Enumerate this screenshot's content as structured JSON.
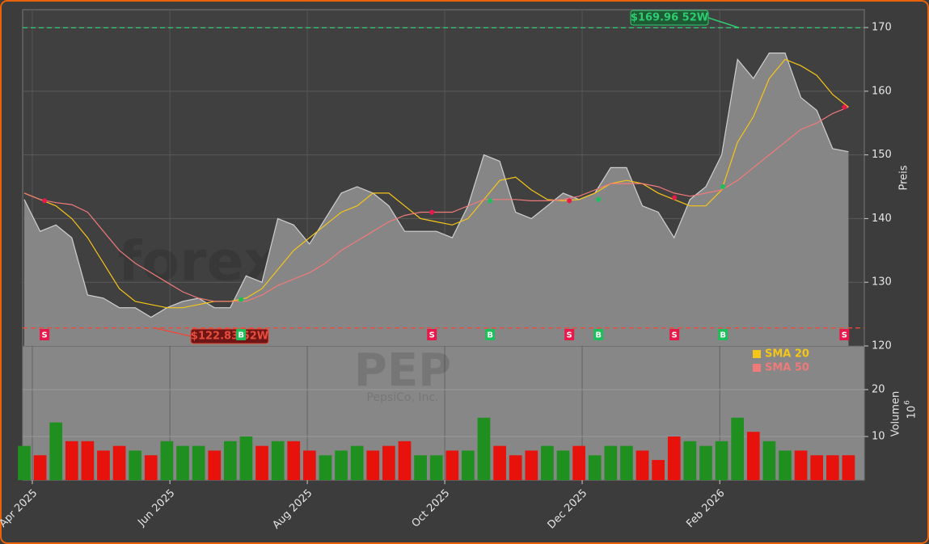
{
  "chart_data": {
    "type": "stock",
    "symbol": "PEP",
    "company": "PepsiCo, Inc.",
    "watermark": "forexsignale.trade",
    "ylabel": "Preis",
    "xlim": [
      -0.1,
      53.0
    ],
    "xticks": [
      {
        "value": 0.51,
        "label": "Apr 2025"
      },
      {
        "value": 9.19,
        "label": "Jun 2025"
      },
      {
        "value": 17.86,
        "label": "Aug 2025"
      },
      {
        "value": 26.53,
        "label": "Oct 2025"
      },
      {
        "value": 35.2,
        "label": "Dec 2025"
      },
      {
        "value": 43.88,
        "label": "Feb 2026"
      }
    ],
    "ylim": [
      120,
      172.8
    ],
    "yticks": [
      120,
      130,
      140,
      150,
      160,
      170
    ],
    "grid": true,
    "close": {
      "color": "#8a8a8a",
      "line_color": "#d0d0d0",
      "values": [
        143,
        138,
        139,
        137,
        128,
        127.5,
        126,
        126,
        124.5,
        126,
        127,
        127.5,
        126,
        126,
        131,
        130,
        140,
        139,
        136,
        140,
        144,
        145,
        144,
        142,
        138,
        138,
        138,
        137,
        142,
        150,
        149,
        141,
        140,
        142,
        144,
        143,
        144,
        148,
        148,
        142,
        141,
        137,
        143,
        145,
        150,
        165,
        162,
        166,
        166,
        159,
        157,
        151,
        150.5
      ]
    },
    "series": [
      {
        "name": "SMA 20",
        "color": "#f5c518",
        "values": [
          144,
          143,
          142,
          140,
          137,
          133,
          129,
          127,
          126.5,
          126,
          126,
          126.5,
          127,
          127,
          127.5,
          129,
          132,
          135,
          137,
          139,
          141,
          142,
          144,
          144,
          142,
          140,
          139.5,
          139,
          140,
          143,
          146,
          146.5,
          144.5,
          143,
          142.8,
          143,
          144,
          145.5,
          146,
          145.5,
          144,
          143,
          142,
          142,
          144.5,
          152,
          156,
          162,
          165,
          164,
          162.5,
          159.5,
          157.5
        ]
      },
      {
        "name": "SMA 50",
        "color": "#f07a7a",
        "values": [
          144,
          143,
          142.5,
          142.2,
          141,
          138,
          135,
          133,
          131.5,
          130,
          128.5,
          127.5,
          127,
          127,
          127,
          128,
          129.5,
          130.5,
          131.5,
          133,
          135,
          136.5,
          138,
          139.5,
          140.5,
          141,
          141,
          141,
          142,
          143,
          143,
          143,
          142.8,
          142.8,
          143,
          143.5,
          144.5,
          145.5,
          145.5,
          145.5,
          145,
          144,
          143.5,
          144,
          144.5,
          146,
          148,
          150,
          152,
          154,
          155,
          156.5,
          157.5
        ]
      }
    ],
    "hlines": [
      {
        "value": 169.96,
        "x": 45.1,
        "label": "$169.96 52W",
        "color": "#2ecc71"
      },
      {
        "value": 122.83,
        "x": 8.2,
        "label": "$122.83 52W",
        "color": "#e74c3c"
      }
    ],
    "signals": [
      {
        "x": 1.28,
        "value": 142.8,
        "label": "S",
        "color": "#e8194a"
      },
      {
        "x": 13.68,
        "value": 127.3,
        "label": "B",
        "color": "#1dbf5a"
      },
      {
        "x": 25.72,
        "value": 141,
        "label": "S",
        "color": "#e8194a"
      },
      {
        "x": 29.39,
        "value": 142.8,
        "label": "B",
        "color": "#1dbf5a"
      },
      {
        "x": 34.39,
        "value": 142.8,
        "label": "S",
        "color": "#e8194a"
      },
      {
        "x": 36.23,
        "value": 143,
        "label": "B",
        "color": "#1dbf5a"
      },
      {
        "x": 41.02,
        "value": 143.3,
        "label": "S",
        "color": "#e8194a"
      },
      {
        "x": 44.08,
        "value": 145,
        "label": "B",
        "color": "#1dbf5a"
      },
      {
        "x": 51.74,
        "value": 157.5,
        "label": "S",
        "color": "#e8194a"
      }
    ],
    "volume": {
      "label": "Volumen",
      "unit": "10",
      "unit_exp": "6",
      "up_color": "#1f8f1f",
      "down_color": "#e8120c",
      "ylim": [
        0.7,
        29.3
      ],
      "yticks": [
        10,
        20
      ],
      "values": [
        8,
        6,
        13,
        9,
        9,
        7,
        8,
        7,
        6,
        9,
        8,
        8,
        7,
        9,
        10,
        8,
        9,
        9,
        7,
        6,
        7,
        8,
        7,
        8,
        9,
        6,
        6,
        7,
        7,
        14,
        8,
        6,
        7,
        8,
        7,
        8,
        6,
        8,
        8,
        7,
        5,
        10,
        9,
        8,
        9,
        14,
        11,
        9,
        7,
        7,
        6,
        6,
        6
      ]
    }
  }
}
